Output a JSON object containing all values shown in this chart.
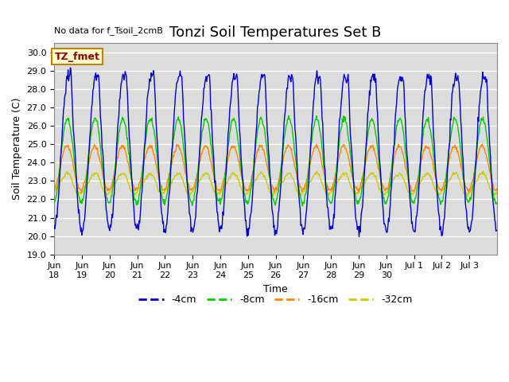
{
  "title": "Tonzi Soil Temperatures Set B",
  "top_left_text": "No data for f_Tsoil_2cmB",
  "xlabel": "Time",
  "ylabel": "Soil Temperature (C)",
  "ylim": [
    19.0,
    30.5
  ],
  "yticks": [
    19.0,
    20.0,
    21.0,
    22.0,
    23.0,
    24.0,
    25.0,
    26.0,
    27.0,
    28.0,
    29.0,
    30.0
  ],
  "bg_color": "#dcdcdc",
  "legend_label": "TZ_fmet",
  "legend_items": [
    "-4cm",
    "-8cm",
    "-16cm",
    "-32cm"
  ],
  "line_colors": [
    "#0000cc",
    "#00cc00",
    "#ff8800",
    "#cccc00"
  ],
  "n_days": 16,
  "pts_per_day": 48,
  "blue_amp": 4.2,
  "blue_mean": 24.5,
  "green_amp": 2.3,
  "green_mean": 24.1,
  "orange_amp": 1.2,
  "orange_mean": 23.7,
  "yellow_amp": 0.55,
  "yellow_mean": 22.85,
  "phase_shift_green": 0.15,
  "phase_shift_orange": 0.25,
  "phase_shift_yellow": 0.38,
  "title_fontsize": 13,
  "label_fontsize": 9,
  "tick_fontsize": 8
}
